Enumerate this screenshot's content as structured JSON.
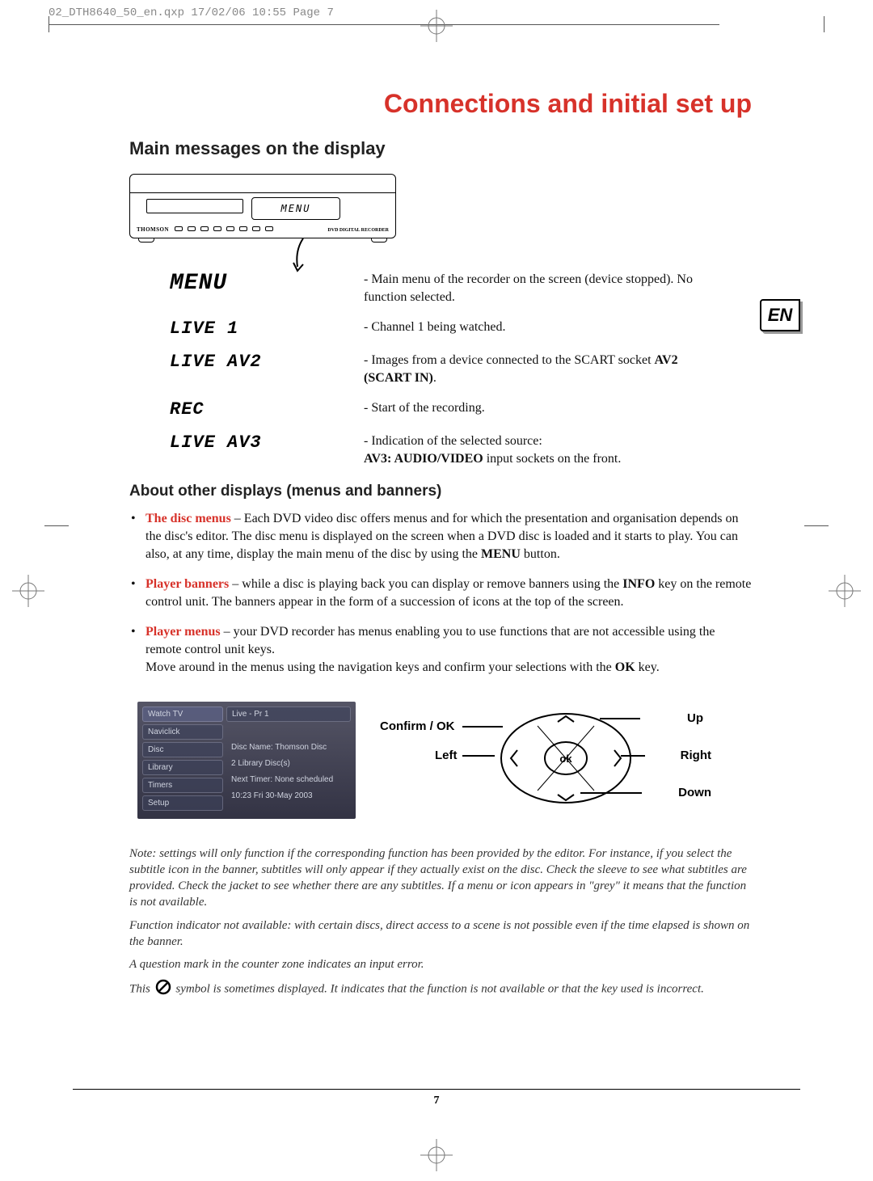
{
  "print_header": "02_DTH8640_50_en.qxp  17/02/06  10:55  Page 7",
  "chapter_title": "Connections and initial set up",
  "section_title": "Main messages on the display",
  "device": {
    "brand": "THOMSON",
    "display_sample": "MENU",
    "product": "DVD DIGITAL RECORDER"
  },
  "lang_tab": "EN",
  "display_messages": [
    {
      "code": "MENU",
      "desc_pre": "- Main menu of the recorder on the screen (device stopped). No function selected."
    },
    {
      "code": "LIVE 1",
      "desc_pre": "- Channel 1 being watched."
    },
    {
      "code": "LIVE AV2",
      "desc_pre": "- Images from a device connected to the SCART socket ",
      "bold": "AV2 (SCART IN)",
      "desc_post": "."
    },
    {
      "code": "REC",
      "desc_pre": "- Start of the recording."
    },
    {
      "code": "LIVE AV3",
      "desc_pre": "- Indication of the selected source:\n",
      "bold": "AV3: AUDIO/VIDEO",
      "desc_post": " input sockets on the front."
    }
  ],
  "sub_title": "About other displays (menus and banners)",
  "bullets": [
    {
      "lead": "The disc menus",
      "text": " – Each DVD video disc offers menus and for which the presentation and organisation depends on the disc's editor. The disc menu is displayed on the screen when a DVD disc is loaded and it starts to play. You can also, at any time, display the main menu of the disc by using the ",
      "bold": "MENU",
      "tail": " button."
    },
    {
      "lead": "Player banners",
      "text": " – while a disc is playing back you can display or remove banners using the ",
      "bold": "INFO",
      "tail": " key on the remote control unit. The banners appear in the form of a succession of icons at the top of the screen."
    },
    {
      "lead": "Player menus",
      "text": " – your DVD recorder has menus enabling you to use functions that are not accessible using the remote control unit keys.\nMove around in the menus using the navigation keys and confirm your selections with the ",
      "bold": "OK",
      "tail": " key."
    }
  ],
  "menu_screenshot": {
    "left_items": [
      "Watch TV",
      "Naviclick",
      "Disc",
      "Library",
      "Timers",
      "Setup"
    ],
    "right_items": [
      "Live - Pr 1",
      "",
      "Disc Name: Thomson Disc",
      "2 Library Disc(s)",
      "Next Timer: None scheduled",
      "10:23 Fri 30-May 2003"
    ]
  },
  "nav_labels": {
    "confirm": "Confirm / OK",
    "left": "Left",
    "up": "Up",
    "right": "Right",
    "down": "Down",
    "ok": "ok"
  },
  "notes": [
    "Note: settings will only function if the corresponding function has been provided by the editor. For instance, if you select the subtitle icon in the banner, subtitles will only appear if they actually exist on the disc. Check the sleeve to see what subtitles are provided. Check the jacket to see whether there are any subtitles. If a menu or icon appears in \"grey\" it means that the function is not available.",
    "Function indicator not available: with certain discs, direct access to a scene is not possible even if the time elapsed is shown on the banner.",
    "A question mark in the counter zone indicates an input error."
  ],
  "note_symbol_pre": "This ",
  "note_symbol_post": " symbol is sometimes displayed. It indicates that the function is not available or that the key used is incorrect.",
  "page_number": "7",
  "colors": {
    "accent": "#d7322a"
  }
}
